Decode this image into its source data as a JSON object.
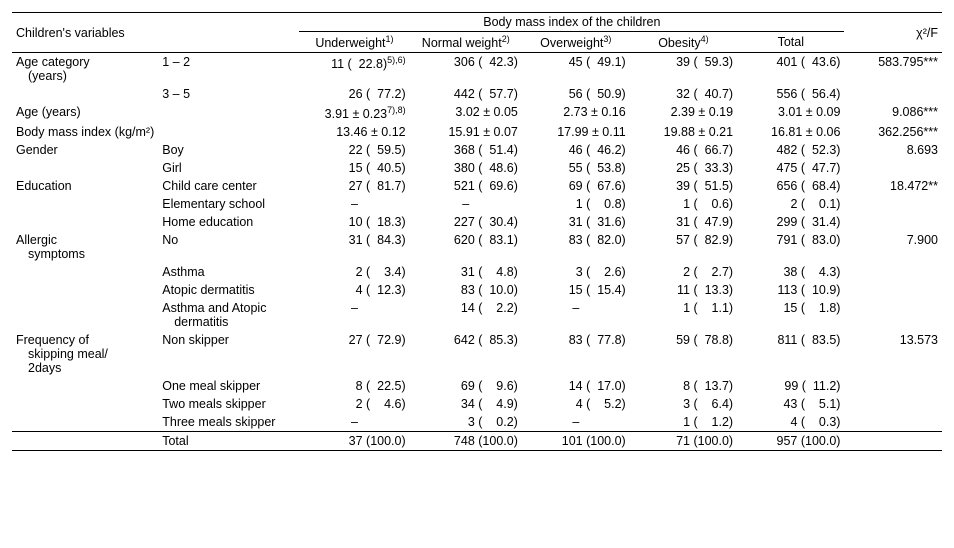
{
  "header": {
    "var_label": "Children's variables",
    "bmi_label": "Body mass index of the children",
    "stat_label": "χ²/F",
    "cols": [
      {
        "label": "Underweight",
        "sup": "1)"
      },
      {
        "label": "Normal weight",
        "sup": "2)"
      },
      {
        "label": "Overweight",
        "sup": "3)"
      },
      {
        "label": "Obesity",
        "sup": "4)"
      },
      {
        "label": "Total",
        "sup": ""
      }
    ]
  },
  "rows": [
    {
      "group": "Age category",
      "group2": "(years)",
      "sub": "1 – 2",
      "u": "11 (  22.8)",
      "u_sup": "5),6)",
      "n": "306 (  42.3)",
      "o": "45 (  49.1)",
      "ob": "39 (  59.3)",
      "t": "401 (  43.6)",
      "stat": "583.795***"
    },
    {
      "group": "",
      "sub": "3 – 5",
      "u": "26 (  77.2)",
      "n": "442 (  57.7)",
      "o": "56 (  50.9)",
      "ob": "32 (  40.7)",
      "t": "556 (  56.4)",
      "stat": ""
    },
    {
      "group": "Age  (years)",
      "sub": "",
      "u": "3.91 ± 0.23",
      "u_sup": "7),8)",
      "n": "3.02 ± 0.05",
      "o": "2.73 ± 0.16",
      "ob": "2.39 ± 0.19",
      "t": "3.01 ± 0.09",
      "stat": "9.086***"
    },
    {
      "group": "Body mass index (kg/m²)",
      "sub": "",
      "u": "13.46 ± 0.12",
      "n": "15.91 ± 0.07",
      "o": "17.99 ± 0.11",
      "ob": "19.88 ± 0.21",
      "t": "16.81 ± 0.06",
      "stat": "362.256***"
    },
    {
      "group": "Gender",
      "sub": "Boy",
      "u": "22 (  59.5)",
      "n": "368 (  51.4)",
      "o": "46 (  46.2)",
      "ob": "46 (  66.7)",
      "t": "482 (  52.3)",
      "stat": "8.693"
    },
    {
      "group": "",
      "sub": "Girl",
      "u": "15 (  40.5)",
      "n": "380 (  48.6)",
      "o": "55 (  53.8)",
      "ob": "25 (  33.3)",
      "t": "475 (  47.7)",
      "stat": ""
    },
    {
      "group": "Education",
      "sub": "Child care center",
      "u": "27 (  81.7)",
      "n": "521 (  69.6)",
      "o": "69 (  67.6)",
      "ob": "39 (  51.5)",
      "t": "656 (  68.4)",
      "stat": "18.472**"
    },
    {
      "group": "",
      "sub": "Elementary school",
      "u": "–",
      "n": "–",
      "o": "1 (    0.8)",
      "ob": "1 (    0.6)",
      "t": "2 (    0.1)",
      "stat": ""
    },
    {
      "group": "",
      "sub": "Home education",
      "u": "10 (  18.3)",
      "n": "227 (  30.4)",
      "o": "31 (  31.6)",
      "ob": "31 (  47.9)",
      "t": "299 (  31.4)",
      "stat": ""
    },
    {
      "group": "Allergic",
      "group2": "symptoms",
      "sub": "No",
      "u": "31 (  84.3)",
      "n": "620 (  83.1)",
      "o": "83 (  82.0)",
      "ob": "57 (  82.9)",
      "t": "791 (  83.0)",
      "stat": "7.900"
    },
    {
      "group": "",
      "sub": "Asthma",
      "u": "2 (    3.4)",
      "n": "31 (    4.8)",
      "o": "3 (    2.6)",
      "ob": "2 (    2.7)",
      "t": "38 (    4.3)",
      "stat": ""
    },
    {
      "group": "",
      "sub": "Atopic dermatitis",
      "u": "4 (  12.3)",
      "n": "83 (  10.0)",
      "o": "15 (  15.4)",
      "ob": "11 (  13.3)",
      "t": "113 (  10.9)",
      "stat": ""
    },
    {
      "group": "",
      "sub": "Asthma and Atopic",
      "sub2": "dermatitis",
      "u": "–",
      "n": "14 (    2.2)",
      "o": "–",
      "ob": "1 (    1.1)",
      "t": "15 (    1.8)",
      "stat": ""
    },
    {
      "group": "Frequency of",
      "group2": "skipping meal/",
      "group3": "2days",
      "sub": "Non skipper",
      "u": "27 (  72.9)",
      "n": "642 (  85.3)",
      "o": "83 (  77.8)",
      "ob": "59 (  78.8)",
      "t": "811 (  83.5)",
      "stat": "13.573"
    },
    {
      "group": "",
      "sub": "One meal skipper",
      "u": "8 (  22.5)",
      "n": "69 (    9.6)",
      "o": "14 (  17.0)",
      "ob": "8 (  13.7)",
      "t": "99 (  11.2)",
      "stat": ""
    },
    {
      "group": "",
      "sub": "Two meals skipper",
      "u": "2 (    4.6)",
      "n": "34 (    4.9)",
      "o": "4 (    5.2)",
      "ob": "3 (    6.4)",
      "t": "43 (    5.1)",
      "stat": ""
    },
    {
      "group": "",
      "sub": "Three meals skipper",
      "u": "–",
      "n": "3 (    0.2)",
      "o": "–",
      "ob": "1 (    1.2)",
      "t": "4 (    0.3)",
      "stat": ""
    }
  ],
  "total_row": {
    "label": "Total",
    "u": "37 (100.0)",
    "n": "748 (100.0)",
    "o": "101 (100.0)",
    "ob": "71 (100.0)",
    "t": "957 (100.0)",
    "stat": ""
  }
}
